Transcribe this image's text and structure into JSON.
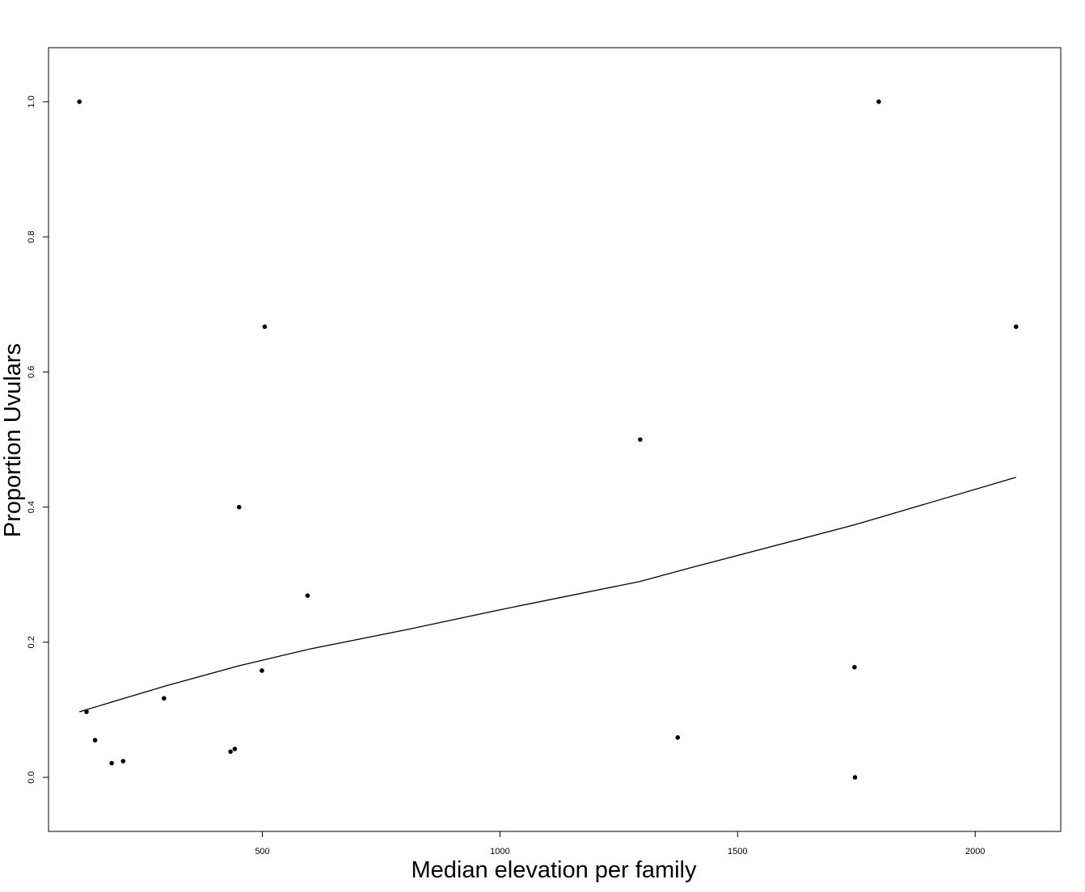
{
  "chart_data": {
    "type": "scatter",
    "title": "",
    "xlabel": "Median elevation per family",
    "ylabel": "Proportion Uvulars",
    "xlim": [
      50,
      2180
    ],
    "ylim": [
      -0.08,
      1.08
    ],
    "x_ticks": [
      500,
      1000,
      1500,
      2000
    ],
    "x_tick_labels": [
      "500",
      "1000",
      "1500",
      "2000"
    ],
    "y_ticks": [
      0.0,
      0.2,
      0.4,
      0.6,
      0.8,
      1.0
    ],
    "y_tick_labels": [
      "0.0",
      "0.2",
      "0.4",
      "0.6",
      "0.8",
      "1.0"
    ],
    "grid": false,
    "legend": "none",
    "points": [
      {
        "x": 115,
        "y": 1.0
      },
      {
        "x": 130,
        "y": 0.097
      },
      {
        "x": 148,
        "y": 0.055
      },
      {
        "x": 183,
        "y": 0.021
      },
      {
        "x": 207,
        "y": 0.024
      },
      {
        "x": 293,
        "y": 0.117
      },
      {
        "x": 433,
        "y": 0.038
      },
      {
        "x": 442,
        "y": 0.042
      },
      {
        "x": 451,
        "y": 0.4
      },
      {
        "x": 499,
        "y": 0.158
      },
      {
        "x": 505,
        "y": 0.667
      },
      {
        "x": 595,
        "y": 0.269
      },
      {
        "x": 1295,
        "y": 0.5
      },
      {
        "x": 1374,
        "y": 0.059
      },
      {
        "x": 1746,
        "y": 0.163
      },
      {
        "x": 1747,
        "y": 0.0
      },
      {
        "x": 1797,
        "y": 1.0
      },
      {
        "x": 2086,
        "y": 0.667
      }
    ],
    "fit_line": {
      "x": [
        115,
        200,
        300,
        450,
        600,
        800,
        1000,
        1295,
        1400,
        1747,
        2086
      ],
      "y": [
        0.097,
        0.115,
        0.136,
        0.165,
        0.19,
        0.218,
        0.248,
        0.29,
        0.31,
        0.374,
        0.444
      ]
    },
    "colors": {
      "points": "#000000",
      "line": "#000000",
      "frame": "#000000",
      "background": "#ffffff"
    }
  }
}
